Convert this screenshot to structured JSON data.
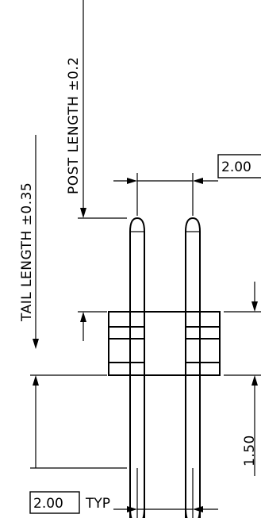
{
  "drawing": {
    "post_length_label": "POST LENGTH ±0.2",
    "tail_length_label": "TAIL LENGTH ±0.35",
    "pitch_top_value": "2.00",
    "pitch_bottom_value": "2.00",
    "pitch_bottom_suffix": "TYP",
    "height_value": "1.50"
  }
}
